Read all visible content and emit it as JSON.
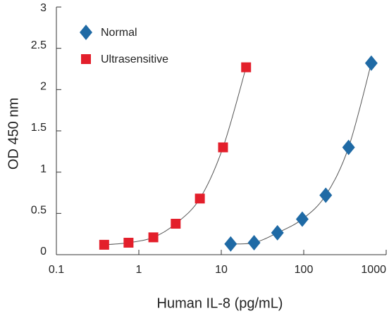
{
  "chart_data": {
    "type": "scatter",
    "xlabel": "Human IL-8 (pg/mL)",
    "ylabel": "OD 450 nm",
    "xscale": "log",
    "xlim": [
      0.1,
      1000
    ],
    "xticks": [
      0.1,
      1,
      10,
      100,
      1000
    ],
    "ylim": [
      0,
      3
    ],
    "yticks": [
      0,
      0.5,
      1,
      1.5,
      2,
      2.5,
      3
    ],
    "legend": "upper left",
    "series": [
      {
        "name": "Normal",
        "color": "#1f6aa5",
        "marker": "diamond",
        "line": true,
        "x": [
          13,
          25,
          48,
          96,
          185,
          350,
          660
        ],
        "values": [
          0.13,
          0.145,
          0.265,
          0.43,
          0.72,
          1.3,
          2.32
        ]
      },
      {
        "name": "Ultrasensitive",
        "color": "#e31f2b",
        "marker": "square",
        "line": true,
        "x": [
          0.38,
          0.75,
          1.5,
          2.8,
          5.5,
          10.5,
          20
        ],
        "values": [
          0.12,
          0.145,
          0.21,
          0.375,
          0.68,
          1.3,
          2.27
        ]
      }
    ]
  }
}
